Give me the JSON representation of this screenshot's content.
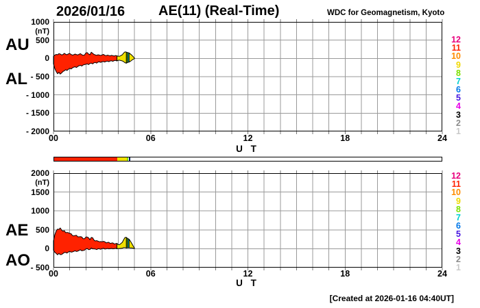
{
  "header": {
    "date": "2026/01/16",
    "title": "AE(11) (Real-Time)",
    "organization": "WDC for Geomagnetism, Kyoto"
  },
  "footer": {
    "created_note": "[Created at 2026-01-16 04:40UT]"
  },
  "x_axis": {
    "label": "U T",
    "ticks": [
      "00",
      "06",
      "12",
      "18",
      "24"
    ],
    "tick_hours": [
      0,
      6,
      12,
      18,
      24
    ]
  },
  "top_plot": {
    "index_labels": [
      "AU",
      "AL"
    ],
    "unit_label": "(nT)",
    "y_tick_labels": [
      "1000",
      "500",
      "0",
      "- 500",
      "- 1000",
      "- 1500",
      "- 2000"
    ]
  },
  "bottom_plot": {
    "index_labels": [
      "AE",
      "AO"
    ],
    "unit_label": "(nT)",
    "y_tick_labels": [
      "2000",
      "1500",
      "1000",
      "500",
      "0",
      "- 500"
    ]
  },
  "station_legend": {
    "entries": [
      {
        "count": "12",
        "color": "#e8007d"
      },
      {
        "count": "11",
        "color": "#ff2200"
      },
      {
        "count": "10",
        "color": "#ff8c00"
      },
      {
        "count": "9",
        "color": "#f0d800"
      },
      {
        "count": "8",
        "color": "#7de000"
      },
      {
        "count": "7",
        "color": "#00d0d0"
      },
      {
        "count": "6",
        "color": "#0077e8"
      },
      {
        "count": "5",
        "color": "#4818e0"
      },
      {
        "count": "4",
        "color": "#e800e8"
      },
      {
        "count": "3",
        "color": "#000000"
      },
      {
        "count": "2",
        "color": "#8c8c8c"
      },
      {
        "count": "1",
        "color": "#c8c8c8"
      }
    ]
  },
  "availability_bar": {
    "x_range": [
      0,
      24
    ],
    "segments": [
      {
        "stations": 11,
        "color": "#ff2200",
        "start": 0,
        "end": 3.917
      },
      {
        "stations": 9,
        "color": "#f0e000",
        "start": 3.917,
        "end": 4.5
      },
      {
        "stations": 8,
        "color": "#7de000",
        "start": 4.5,
        "end": 4.583
      }
    ],
    "current_time_marker": {
      "hour": 4.65,
      "color": "#002060"
    }
  },
  "chart_data": [
    {
      "type": "area",
      "title": "AU / AL auroral electrojet indices (Real-Time)",
      "xlabel": "U T",
      "ylabel": "nT",
      "x_range": [
        0,
        24
      ],
      "y_range": [
        -2000,
        1000
      ],
      "y_ticks": [
        1000,
        500,
        0,
        -500,
        -1000,
        -1500,
        -2000
      ],
      "x_tick_hours": [
        0,
        6,
        12,
        18,
        24
      ],
      "grid": true,
      "fill_between": [
        "AU",
        "AL"
      ],
      "x_hours": [
        0,
        0.083,
        0.167,
        0.25,
        0.333,
        0.417,
        0.5,
        0.583,
        0.667,
        0.75,
        0.833,
        0.917,
        1,
        1.083,
        1.167,
        1.25,
        1.333,
        1.417,
        1.5,
        1.583,
        1.667,
        1.75,
        1.833,
        1.917,
        2,
        2.083,
        2.167,
        2.25,
        2.333,
        2.417,
        2.5,
        2.583,
        2.667,
        2.75,
        2.833,
        2.917,
        3,
        3.083,
        3.167,
        3.25,
        3.333,
        3.417,
        3.5,
        3.583,
        3.667,
        3.75,
        3.833,
        3.917,
        4,
        4.083,
        4.167,
        4.25,
        4.333,
        4.417,
        4.5,
        4.583,
        4.667,
        4.75,
        4.833,
        4.917,
        5
      ],
      "series": [
        {
          "name": "AU",
          "values": [
            60,
            90,
            110,
            100,
            130,
            120,
            95,
            105,
            140,
            115,
            100,
            125,
            135,
            110,
            90,
            100,
            120,
            105,
            95,
            115,
            130,
            100,
            85,
            95,
            150,
            160,
            120,
            100,
            170,
            140,
            110,
            95,
            85,
            100,
            90,
            80,
            95,
            110,
            85,
            75,
            90,
            80,
            70,
            85,
            75,
            65,
            80,
            70,
            60,
            60,
            80,
            100,
            150,
            180,
            170,
            160,
            150,
            120,
            90,
            50,
            10
          ]
        },
        {
          "name": "AL",
          "values": [
            -150,
            -280,
            -360,
            -420,
            -380,
            -430,
            -400,
            -360,
            -340,
            -310,
            -330,
            -300,
            -270,
            -290,
            -260,
            -240,
            -230,
            -250,
            -220,
            -200,
            -190,
            -210,
            -180,
            -170,
            -160,
            -150,
            -170,
            -140,
            -130,
            -150,
            -120,
            -110,
            -130,
            -100,
            -95,
            -110,
            -90,
            -85,
            -100,
            -80,
            -75,
            -90,
            -70,
            -65,
            -80,
            -60,
            -55,
            -70,
            -50,
            -50,
            -60,
            -70,
            -90,
            -120,
            -130,
            -110,
            -100,
            -80,
            -50,
            -25,
            -5
          ]
        }
      ],
      "color_segments": [
        {
          "stations": 11,
          "color": "#ff2200",
          "from": 0,
          "to": 47
        },
        {
          "stations": 9,
          "color": "#f0e000",
          "from": 47,
          "to": 54
        },
        {
          "stations": 8,
          "color": "#7de000",
          "from": 54,
          "to": 55
        },
        {
          "stations": 7,
          "color": "#00d0d0",
          "from": 55,
          "to": 56
        },
        {
          "stations": 9,
          "color": "#f0e000",
          "from": 56,
          "to": 60
        }
      ]
    },
    {
      "type": "area",
      "title": "AE / AO auroral electrojet indices (Real-Time)",
      "xlabel": "U T",
      "ylabel": "nT",
      "x_range": [
        0,
        24
      ],
      "y_range": [
        -500,
        2000
      ],
      "y_ticks": [
        2000,
        1500,
        1000,
        500,
        0,
        -500
      ],
      "x_tick_hours": [
        0,
        6,
        12,
        18,
        24
      ],
      "grid": true,
      "fill_between": [
        "AE",
        "AO"
      ],
      "x_hours": [
        0,
        0.083,
        0.167,
        0.25,
        0.333,
        0.417,
        0.5,
        0.583,
        0.667,
        0.75,
        0.833,
        0.917,
        1,
        1.083,
        1.167,
        1.25,
        1.333,
        1.417,
        1.5,
        1.583,
        1.667,
        1.75,
        1.833,
        1.917,
        2,
        2.083,
        2.167,
        2.25,
        2.333,
        2.417,
        2.5,
        2.583,
        2.667,
        2.75,
        2.833,
        2.917,
        3,
        3.083,
        3.167,
        3.25,
        3.333,
        3.417,
        3.5,
        3.583,
        3.667,
        3.75,
        3.833,
        3.917,
        4,
        4.083,
        4.167,
        4.25,
        4.333,
        4.417,
        4.5,
        4.583,
        4.667,
        4.75,
        4.833,
        4.917,
        5
      ],
      "series": [
        {
          "name": "AE",
          "values": [
            210,
            370,
            470,
            520,
            510,
            550,
            495,
            465,
            480,
            425,
            430,
            425,
            405,
            400,
            350,
            340,
            350,
            355,
            315,
            315,
            320,
            310,
            265,
            265,
            310,
            310,
            290,
            240,
            300,
            290,
            230,
            205,
            215,
            200,
            185,
            190,
            185,
            195,
            185,
            155,
            165,
            170,
            140,
            150,
            155,
            125,
            135,
            140,
            110,
            110,
            140,
            170,
            240,
            300,
            300,
            270,
            250,
            200,
            140,
            75,
            15
          ]
        },
        {
          "name": "AO",
          "values": [
            -45,
            -95,
            -125,
            -160,
            -125,
            -155,
            -153,
            -128,
            -100,
            -98,
            -115,
            -88,
            -68,
            -90,
            -85,
            -70,
            -55,
            -73,
            -63,
            -43,
            -30,
            -55,
            -48,
            -38,
            -5,
            5,
            -25,
            -20,
            20,
            -5,
            -5,
            -8,
            -23,
            0,
            -3,
            -15,
            3,
            13,
            -8,
            -3,
            8,
            -5,
            0,
            10,
            -3,
            3,
            13,
            0,
            5,
            5,
            10,
            15,
            30,
            30,
            20,
            25,
            25,
            20,
            20,
            13,
            3
          ]
        }
      ],
      "color_segments": [
        {
          "stations": 11,
          "color": "#ff2200",
          "from": 0,
          "to": 47
        },
        {
          "stations": 9,
          "color": "#f0e000",
          "from": 47,
          "to": 54
        },
        {
          "stations": 8,
          "color": "#7de000",
          "from": 54,
          "to": 55
        },
        {
          "stations": 7,
          "color": "#00d0d0",
          "from": 55,
          "to": 56
        },
        {
          "stations": 9,
          "color": "#f0e000",
          "from": 56,
          "to": 60
        }
      ]
    }
  ]
}
